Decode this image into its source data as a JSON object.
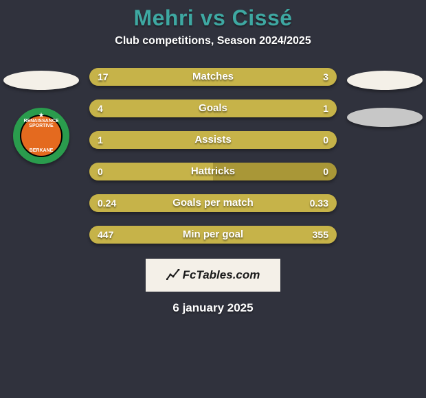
{
  "page": {
    "background_color": "#30323d",
    "text_color": "#ffffff",
    "title_color": "#3ea8a2",
    "title_fontsize": 32,
    "subtitle_fontsize": 16,
    "date_fontsize": 17
  },
  "header": {
    "title": "Mehri vs Cissé",
    "subtitle": "Club competitions, Season 2024/2025"
  },
  "players": {
    "left": {
      "ellipse_color": "#f4f0e8",
      "club_badge": {
        "outer_color": "#2a9c4d",
        "inner_color": "#e46a1f",
        "text_top": "RENAISSANCE SPORTIVE",
        "text_bottom": "BERKANE"
      }
    },
    "right": {
      "ellipse_color": "#f4f0e8",
      "ellipse2_color": "#c7c7c7"
    }
  },
  "bars": {
    "track_color": "#a99737",
    "fill_color": "#c6b349",
    "label_color": "#ffffff",
    "label_fontsize": 15,
    "value_fontsize": 14,
    "height": 26,
    "gap": 20,
    "items": [
      {
        "label": "Matches",
        "left_val": "17",
        "right_val": "3",
        "left_pct": 85,
        "right_pct": 15
      },
      {
        "label": "Goals",
        "left_val": "4",
        "right_val": "1",
        "left_pct": 80,
        "right_pct": 20
      },
      {
        "label": "Assists",
        "left_val": "1",
        "right_val": "0",
        "left_pct": 100,
        "right_pct": 0
      },
      {
        "label": "Hattricks",
        "left_val": "0",
        "right_val": "0",
        "left_pct": 50,
        "right_pct": 0
      },
      {
        "label": "Goals per match",
        "left_val": "0.24",
        "right_val": "0.33",
        "left_pct": 42,
        "right_pct": 58
      },
      {
        "label": "Min per goal",
        "left_val": "447",
        "right_val": "355",
        "left_pct": 56,
        "right_pct": 44
      }
    ]
  },
  "watermark": {
    "text": "FcTables.com",
    "bg_color": "#f4f0e8",
    "text_color": "#1a1a1a",
    "fontsize": 17
  },
  "footer": {
    "date": "6 january 2025"
  }
}
